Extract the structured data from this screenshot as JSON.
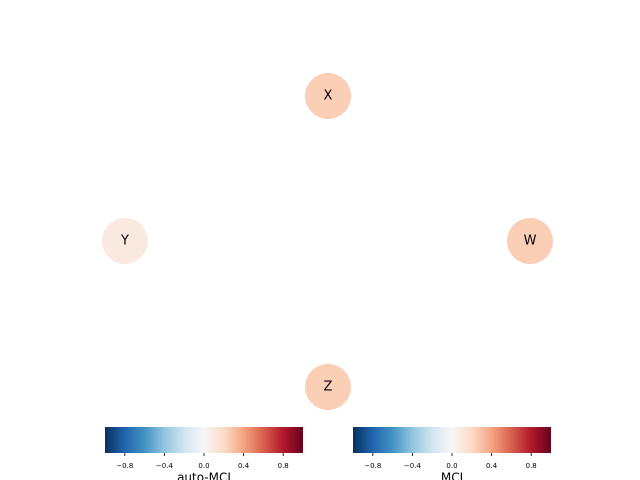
{
  "nodes": [
    {
      "label": "X",
      "value": 0.25
    },
    {
      "label": "Y",
      "value": 0.1
    },
    {
      "label": "W",
      "value": 0.25
    },
    {
      "label": "Z",
      "value": 0.25
    }
  ],
  "colorbars": [
    {
      "label": "auto-MCI",
      "range": [
        -1,
        1
      ],
      "ticks": [
        {
          "value": -0.8,
          "label": "−0.8"
        },
        {
          "value": -0.4,
          "label": "−0.4"
        },
        {
          "value": 0,
          "label": "0.0"
        },
        {
          "value": 0.4,
          "label": "0.4"
        },
        {
          "value": 0.8,
          "label": "0.8"
        }
      ]
    },
    {
      "label": "MCI",
      "range": [
        -1,
        1
      ],
      "ticks": [
        {
          "value": -0.8,
          "label": "−0.8"
        },
        {
          "value": -0.4,
          "label": "−0.4"
        },
        {
          "value": 0,
          "label": "0.0"
        },
        {
          "value": 0.4,
          "label": "0.4"
        },
        {
          "value": 0.8,
          "label": "0.8"
        }
      ]
    }
  ]
}
